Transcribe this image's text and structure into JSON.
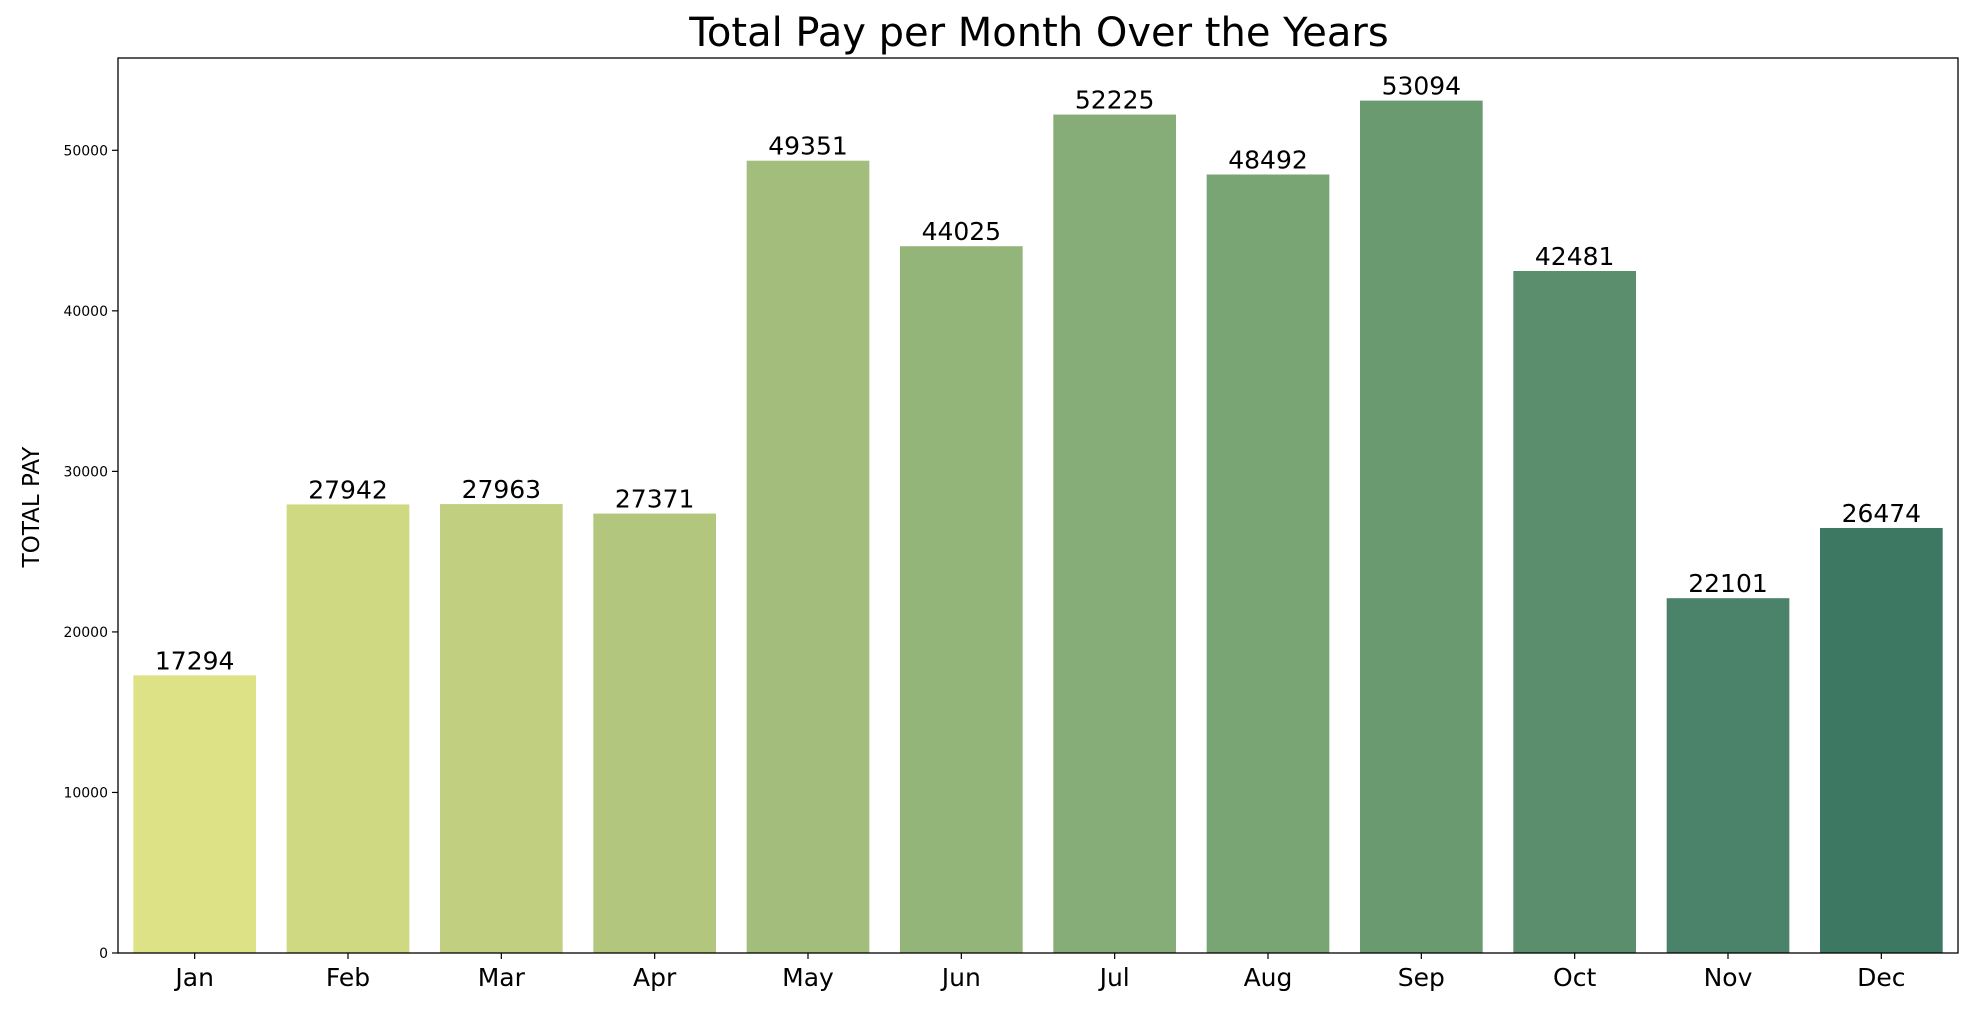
{
  "chart_data": {
    "type": "bar",
    "title": "Total Pay per Month Over the Years",
    "xlabel": "",
    "ylabel": "TOTAL PAY",
    "categories": [
      "Jan",
      "Feb",
      "Mar",
      "Apr",
      "May",
      "Jun",
      "Jul",
      "Aug",
      "Sep",
      "Oct",
      "Nov",
      "Dec"
    ],
    "values": [
      17294,
      27942,
      27963,
      27371,
      49351,
      44025,
      52225,
      48492,
      53094,
      42481,
      22101,
      26474
    ],
    "data_labels": [
      "17294",
      "27942",
      "27963",
      "27371",
      "49351",
      "44025",
      "52225",
      "48492",
      "53094",
      "42481",
      "22101",
      "26474"
    ],
    "yticks": [
      0,
      10000,
      20000,
      30000,
      40000,
      50000
    ],
    "ytick_labels": [
      "0",
      "10000",
      "20000",
      "30000",
      "40000",
      "50000"
    ],
    "ylim": [
      0,
      55749
    ],
    "grid": false,
    "legend": "none",
    "colors": [
      "#dde286",
      "#cfd981",
      "#c1cf80",
      "#b2c67e",
      "#a3be7c",
      "#94b57a",
      "#86ad77",
      "#79a574",
      "#6a9a6f",
      "#5a8e6c",
      "#4a836a",
      "#3d7863"
    ]
  }
}
